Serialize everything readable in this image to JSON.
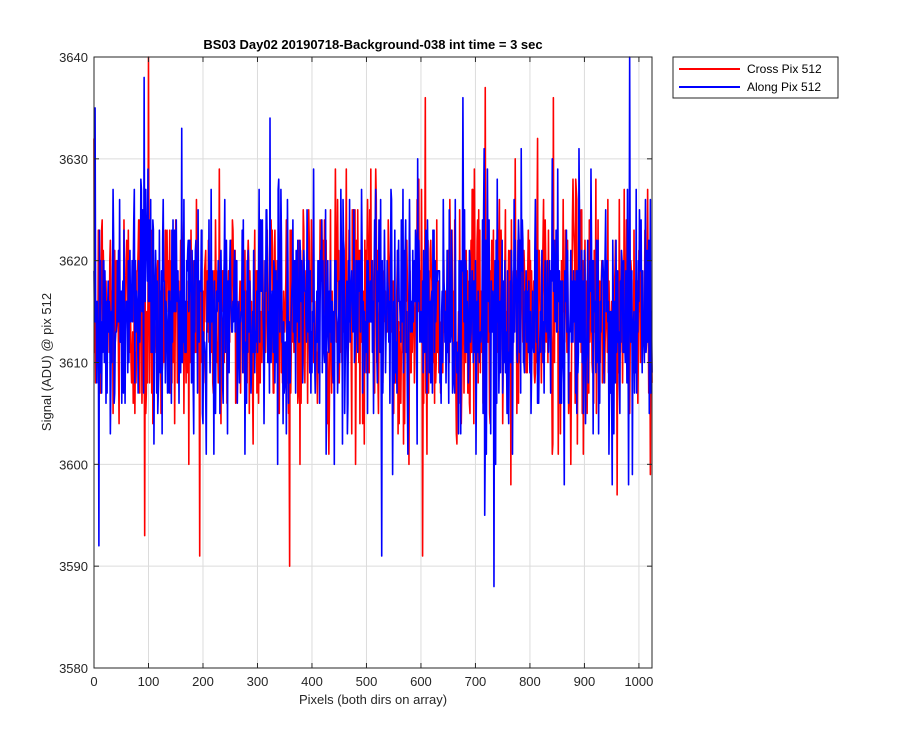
{
  "chart_data": {
    "type": "line",
    "title": "BS03 Day02 20190718-Background-038 int time = 3 sec",
    "xlabel": "Pixels (both dirs on array)",
    "ylabel": "Signal (ADU) @ pix 512",
    "xlim": [
      0,
      1024
    ],
    "ylim": [
      3580,
      3640
    ],
    "x_ticks": [
      0,
      100,
      200,
      300,
      400,
      500,
      600,
      700,
      800,
      900,
      1000
    ],
    "y_ticks": [
      3580,
      3590,
      3600,
      3610,
      3620,
      3630,
      3640
    ],
    "grid": true,
    "legend_position": "outside top-right",
    "series": [
      {
        "name": "Cross Pix 512",
        "color": "#ff0000",
        "noise_mean": 3615,
        "noise_std": 6,
        "x": [
          0,
          1024
        ],
        "notable_points": [
          {
            "x": 93,
            "y": 3593
          },
          {
            "x": 100,
            "y": 3640
          },
          {
            "x": 603,
            "y": 3591
          },
          {
            "x": 608,
            "y": 3636
          },
          {
            "x": 718,
            "y": 3637
          },
          {
            "x": 843,
            "y": 3636
          },
          {
            "x": 960,
            "y": 3597
          }
        ]
      },
      {
        "name": "Along Pix 512",
        "color": "#0000ff",
        "noise_mean": 3615,
        "noise_std": 6,
        "x": [
          0,
          1024
        ],
        "notable_points": [
          {
            "x": 2,
            "y": 3635
          },
          {
            "x": 9,
            "y": 3592
          },
          {
            "x": 92,
            "y": 3638
          },
          {
            "x": 528,
            "y": 3591
          },
          {
            "x": 734,
            "y": 3588
          },
          {
            "x": 983,
            "y": 3641
          }
        ]
      }
    ]
  }
}
